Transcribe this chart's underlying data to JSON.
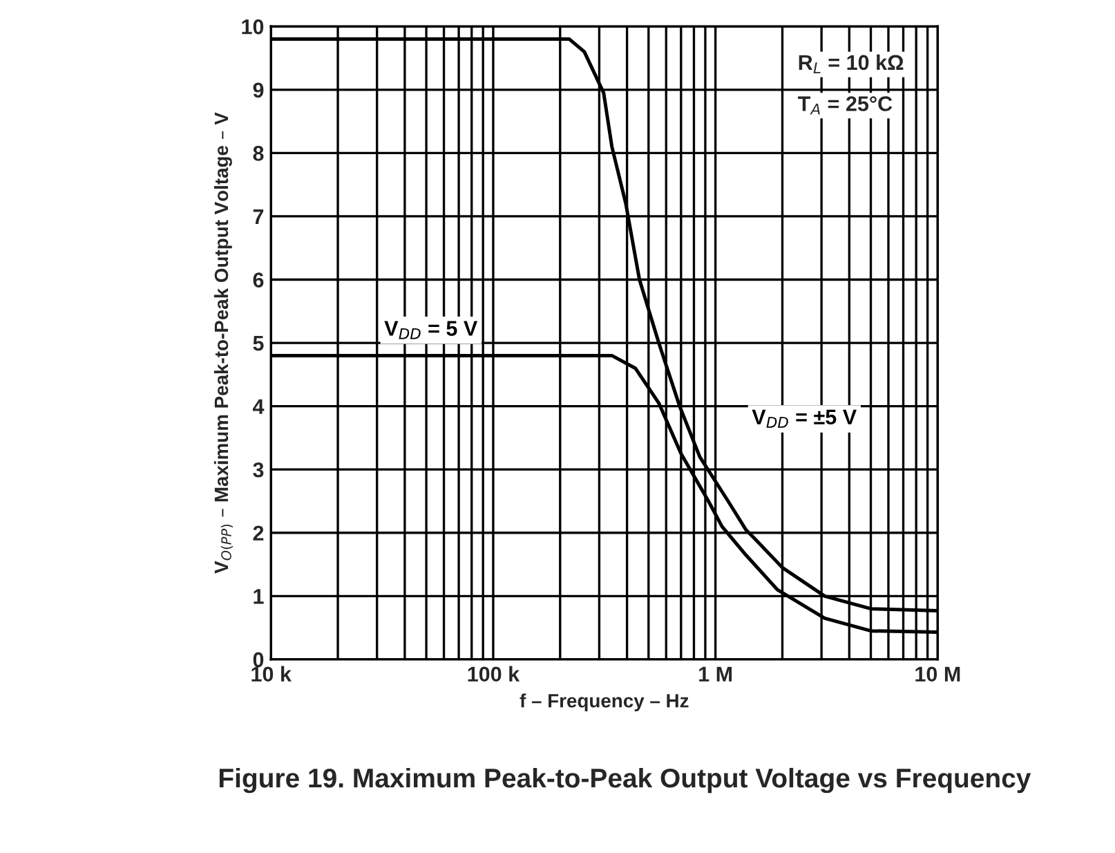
{
  "chart_data": {
    "type": "line",
    "title": "Figure 19. Maximum Peak-to-Peak Output Voltage vs Frequency",
    "xlabel": "f – Frequency – Hz",
    "ylabel": "V$_{O(PP)}$ – Maximum Peak-to-Peak Output Voltage – V",
    "log": "x",
    "grid": true,
    "legend": false,
    "marker": "none",
    "line_style": "solid",
    "xlim": [
      10000,
      10000000
    ],
    "xticks": [
      {
        "value": 10000,
        "label": "10 k"
      },
      {
        "value": 100000,
        "label": "100 k"
      },
      {
        "value": 1000000,
        "label": "1 M"
      },
      {
        "value": 10000000,
        "label": "10 M"
      }
    ],
    "ylim": [
      0,
      10
    ],
    "yticks": [
      0,
      1,
      2,
      3,
      4,
      5,
      6,
      7,
      8,
      9,
      10
    ],
    "annotations": [
      "R$_{L}$ = 10 kΩ",
      "T$_{A}$ = 25°C"
    ],
    "series": [
      {
        "name": "V$_{DD}$ = ±5 V",
        "color": "#000000",
        "x": [
          10000,
          220000,
          257000,
          314000,
          342000,
          395000,
          455000,
          556000,
          690000,
          850000,
          1140000,
          1370000,
          1510000,
          2000000,
          3100000,
          5000000,
          10000000
        ],
        "values": [
          9.8,
          9.8,
          9.6,
          8.95,
          8.1,
          7.2,
          6.0,
          5.0,
          4.0,
          3.2,
          2.5,
          2.05,
          1.9,
          1.45,
          1.0,
          0.8,
          0.77
        ]
      },
      {
        "name": "V$_{DD}$ = 5 V",
        "color": "#000000",
        "x": [
          10000,
          342000,
          436000,
          556000,
          700000,
          930000,
          1070000,
          1370000,
          1900000,
          3100000,
          5000000,
          10000000
        ],
        "values": [
          4.8,
          4.8,
          4.6,
          4.05,
          3.25,
          2.5,
          2.1,
          1.65,
          1.1,
          0.65,
          0.45,
          0.43
        ]
      }
    ]
  }
}
